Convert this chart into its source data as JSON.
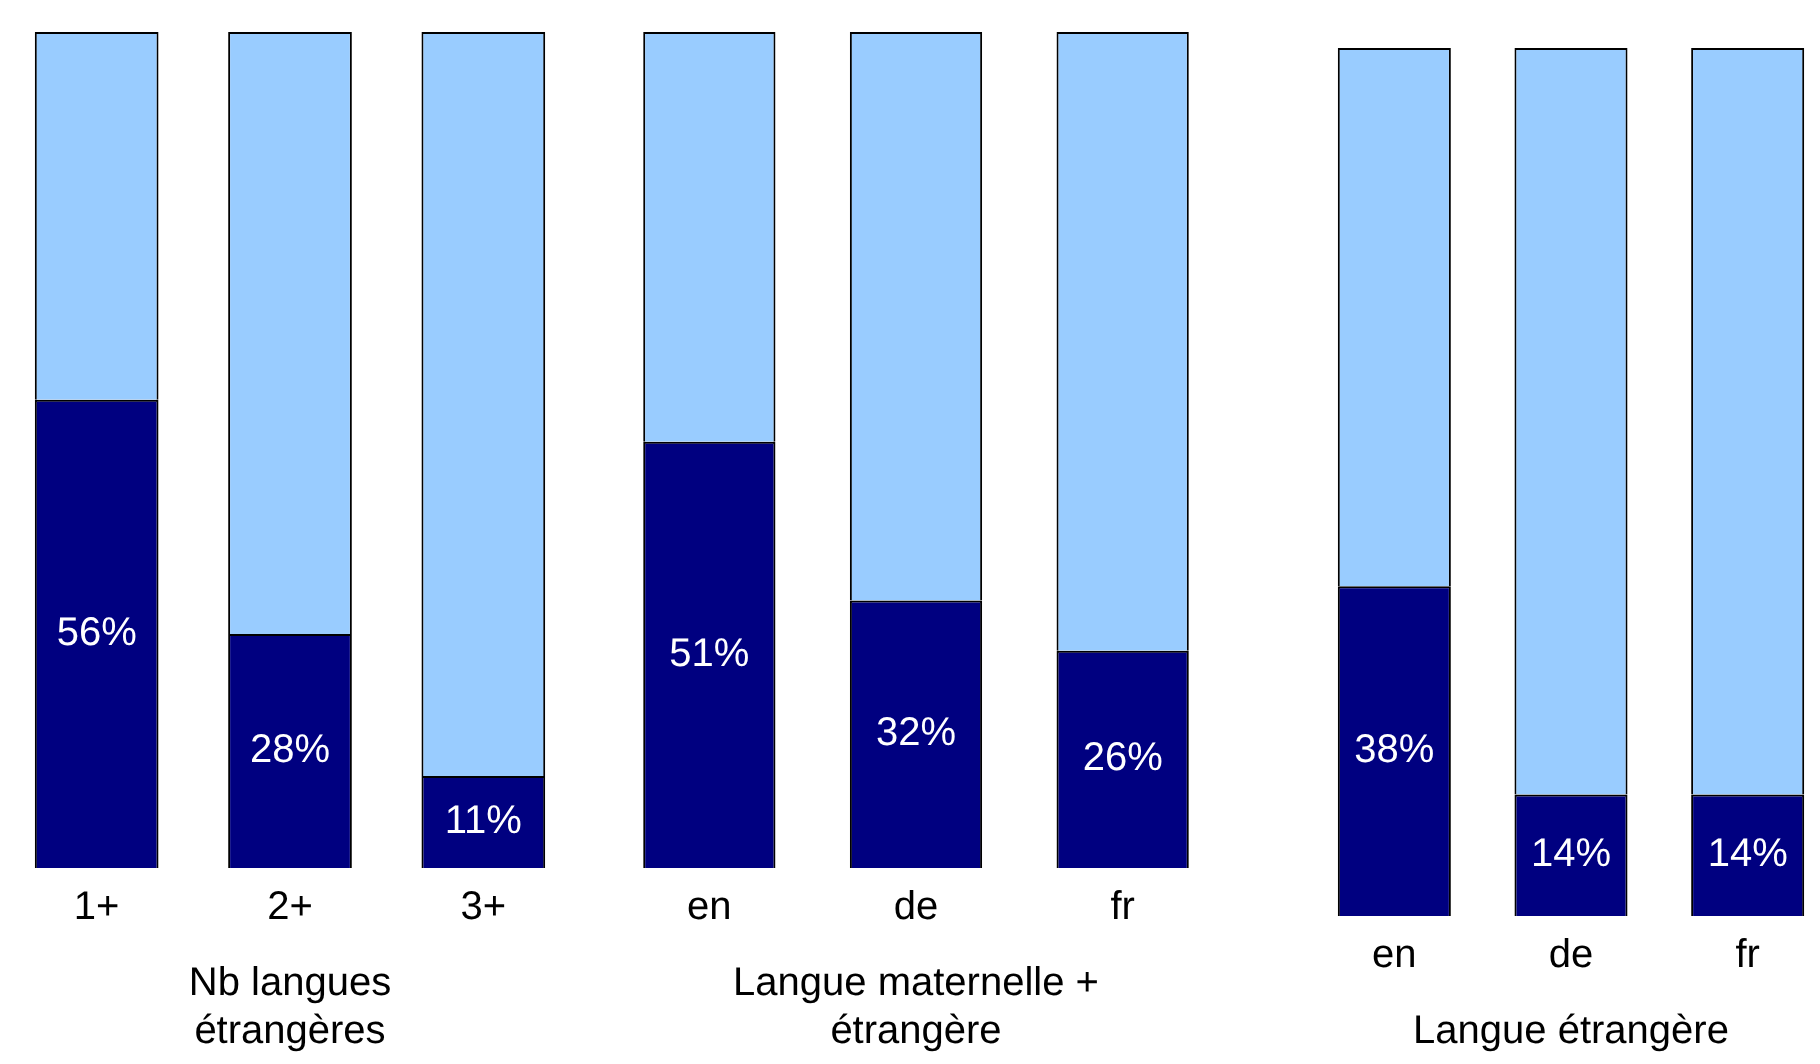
{
  "chart_data": [
    {
      "type": "bar",
      "stacked": true,
      "categories": [
        "1+",
        "2+",
        "3+"
      ],
      "xlabel": "Nb langues étrangères",
      "grid": false,
      "legend": false,
      "tick_labels": "x",
      "series": [
        {
          "color": "#000080",
          "values": [
            56,
            28,
            11
          ],
          "value_labels": [
            "56%",
            "28%",
            "11%"
          ]
        },
        {
          "color": "#99ccff",
          "values": [
            44,
            72,
            89
          ]
        }
      ]
    },
    {
      "type": "bar",
      "stacked": true,
      "categories": [
        "en",
        "de",
        "fr"
      ],
      "xlabel": "Langue maternelle + étrangère",
      "grid": false,
      "legend": false,
      "tick_labels": "x",
      "series": [
        {
          "color": "#000080",
          "values": [
            51,
            32,
            26
          ],
          "value_labels": [
            "51%",
            "32%",
            "26%"
          ]
        },
        {
          "color": "#99ccff",
          "values": [
            49,
            68,
            74
          ]
        }
      ]
    },
    {
      "type": "bar",
      "stacked": true,
      "categories": [
        "en",
        "de",
        "fr"
      ],
      "xlabel": "Langue étrangère",
      "grid": false,
      "legend": false,
      "tick_labels": "x",
      "series": [
        {
          "color": "#000080",
          "values": [
            38,
            14,
            14
          ],
          "value_labels": [
            "38%",
            "14%",
            "14%"
          ]
        },
        {
          "color": "#99ccff",
          "values": [
            62,
            86,
            86
          ]
        }
      ]
    }
  ]
}
